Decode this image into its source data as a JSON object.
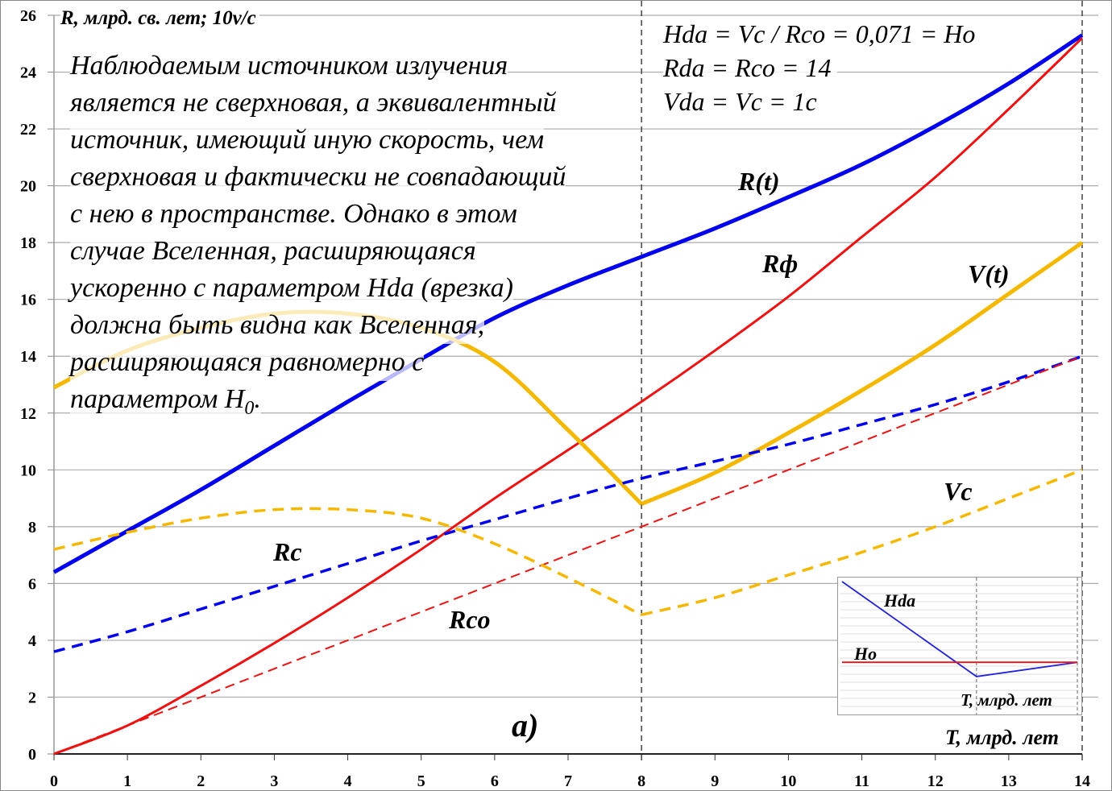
{
  "chart_data": {
    "type": "line",
    "ylabel": "R, млрд. св. лет; 10v/c",
    "xlabel": "T, млрд. лет",
    "xlim": [
      0,
      14
    ],
    "ylim": [
      0,
      26
    ],
    "xticks": [
      "0",
      "1",
      "2",
      "3",
      "4",
      "5",
      "6",
      "7",
      "8",
      "9",
      "10",
      "11",
      "12",
      "13",
      "14"
    ],
    "yticks": [
      "0",
      "2",
      "4",
      "6",
      "8",
      "10",
      "12",
      "14",
      "16",
      "18",
      "20",
      "22",
      "24",
      "26"
    ],
    "grid": "horizontal",
    "vertical_markers": [
      8,
      14
    ],
    "x": [
      0,
      1,
      2,
      3,
      4,
      5,
      6,
      7,
      8,
      9,
      10,
      11,
      12,
      13,
      14
    ],
    "series": [
      {
        "name": "R(t)",
        "color": "#0000ee",
        "style": "solid",
        "values": [
          6.4,
          7.85,
          9.3,
          10.85,
          12.4,
          13.9,
          15.35,
          16.5,
          17.5,
          18.5,
          19.6,
          20.75,
          22.1,
          23.6,
          25.3
        ]
      },
      {
        "name": "Rф",
        "color": "#ee1111",
        "style": "solid",
        "values": [
          0,
          1.0,
          2.4,
          3.9,
          5.5,
          7.2,
          9.0,
          10.7,
          12.4,
          14.2,
          16.1,
          18.2,
          20.3,
          22.7,
          25.2
        ]
      },
      {
        "name": "V(t)",
        "color": "#f5b800",
        "style": "solid",
        "cusp": 8,
        "values": [
          12.9,
          14.2,
          15.0,
          15.5,
          15.5,
          15.0,
          13.8,
          11.4,
          8.8,
          9.9,
          11.3,
          12.8,
          14.4,
          16.2,
          18.0
        ]
      },
      {
        "name": "Rc",
        "color": "#0000ee",
        "style": "dashed",
        "values": [
          3.6,
          4.3,
          5.1,
          5.9,
          6.7,
          7.5,
          8.25,
          9.0,
          9.7,
          10.3,
          10.9,
          11.6,
          12.3,
          13.1,
          14.0
        ]
      },
      {
        "name": "Rco",
        "color": "#ee1111",
        "style": "dashed",
        "values": [
          0,
          1,
          2,
          3,
          4,
          5,
          6,
          7,
          8,
          9,
          10,
          11,
          12,
          13,
          14
        ]
      },
      {
        "name": "Vc",
        "color": "#f5b800",
        "style": "dashed",
        "cusp": 8,
        "values": [
          7.2,
          7.8,
          8.3,
          8.6,
          8.6,
          8.3,
          7.4,
          6.2,
          4.9,
          5.5,
          6.3,
          7.1,
          8.0,
          9.0,
          10.0
        ]
      }
    ],
    "panel_label": "a)",
    "annotation_paragraph": [
      "Наблюдаемым источником излучения",
      "является не сверхновая, а эквивалентный",
      "источник, имеющий иную скорость, чем",
      "сверхновая и фактически не совпадающий",
      "с нею в пространстве. Однако в этом",
      "случае Вселенная, расширяющаяся",
      "ускоренно с параметром Hda (врезка)",
      "должна быть видна как Вселенная,",
      "расширяющаяся равномерно с",
      "параметром H"
    ],
    "annotation_sub": "0",
    "annotation_end": ".",
    "formulas": [
      "Hda = Vc / Rco = 0,071 = Ho",
      "Rda = Rco = 14",
      "Vda = Vc = 1c"
    ],
    "inset": {
      "type": "line",
      "xlabel": "T, млрд. лет",
      "xlim": [
        0,
        14
      ],
      "x": [
        0,
        8,
        14
      ],
      "series": [
        {
          "name": "Hda",
          "color": "#2222dd",
          "values": [
            0.19,
            0.05,
            0.071
          ]
        },
        {
          "name": "Ho",
          "color": "#ee1111",
          "values": [
            0.071,
            0.071,
            0.071
          ]
        }
      ]
    }
  }
}
